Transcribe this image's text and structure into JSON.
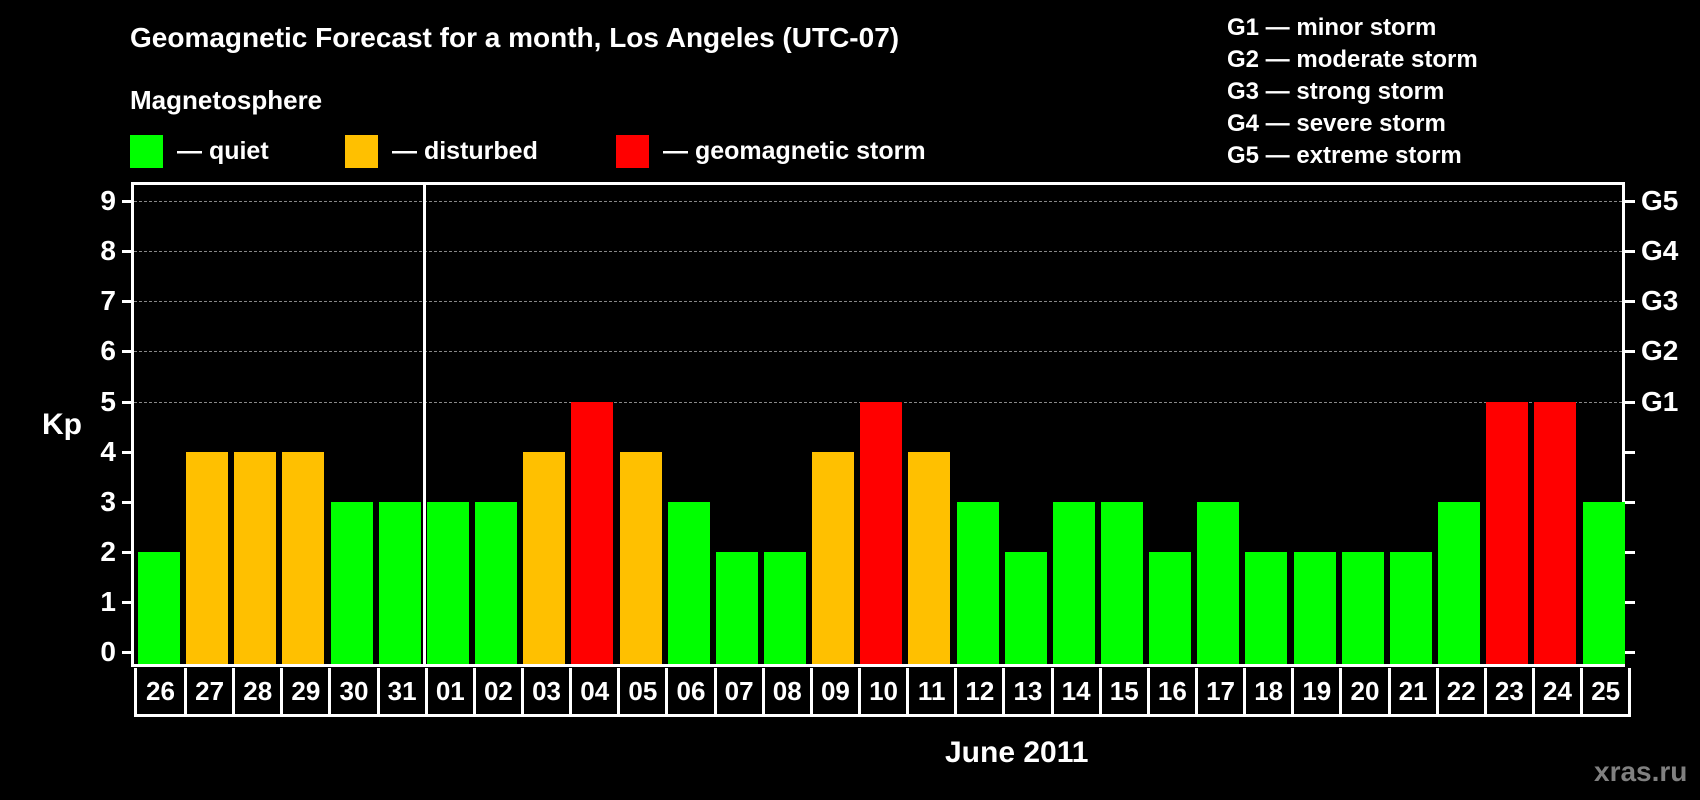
{
  "header": {
    "title": "Geomagnetic Forecast for a month, Los Angeles (UTC-07)",
    "subtitle": "Magnetosphere"
  },
  "legend": {
    "items": [
      {
        "label": "— quiet",
        "color": "#00ff00"
      },
      {
        "label": "— disturbed",
        "color": "#ffc000"
      },
      {
        "label": "— geomagnetic storm",
        "color": "#ff0000"
      }
    ]
  },
  "g_scale_legend": [
    "G1 — minor storm",
    "G2 — moderate storm",
    "G3 — strong storm",
    "G4 — severe storm",
    "G5 — extreme storm"
  ],
  "axes": {
    "ylabel": "Kp",
    "xlabel": "June 2011",
    "yticks": [
      "0",
      "1",
      "2",
      "3",
      "4",
      "5",
      "6",
      "7",
      "8",
      "9"
    ],
    "right_ticks": [
      {
        "kp": 5,
        "label": "G1"
      },
      {
        "kp": 6,
        "label": "G2"
      },
      {
        "kp": 7,
        "label": "G3"
      },
      {
        "kp": 8,
        "label": "G4"
      },
      {
        "kp": 9,
        "label": "G5"
      }
    ]
  },
  "watermark": "xras.ru",
  "colors": {
    "quiet": "#00ff00",
    "disturbed": "#ffc000",
    "storm": "#ff0000"
  },
  "chart_data": {
    "type": "bar",
    "title": "Geomagnetic Forecast for a month, Los Angeles (UTC-07)",
    "xlabel": "June 2011",
    "ylabel": "Kp",
    "ylim": [
      0,
      9
    ],
    "grid": "dashed horizontal lines at Kp 5-9",
    "legend_position": "top",
    "categories": [
      "26",
      "27",
      "28",
      "29",
      "30",
      "31",
      "01",
      "02",
      "03",
      "04",
      "05",
      "06",
      "07",
      "08",
      "09",
      "10",
      "11",
      "12",
      "13",
      "14",
      "15",
      "16",
      "17",
      "18",
      "19",
      "20",
      "21",
      "22",
      "23",
      "24",
      "25"
    ],
    "values": [
      2,
      4,
      4,
      4,
      3,
      3,
      3,
      3,
      4,
      5,
      4,
      3,
      2,
      2,
      4,
      5,
      4,
      3,
      2,
      3,
      3,
      2,
      3,
      2,
      2,
      2,
      2,
      3,
      5,
      5,
      3
    ],
    "status": [
      "quiet",
      "disturbed",
      "disturbed",
      "disturbed",
      "quiet",
      "quiet",
      "quiet",
      "quiet",
      "disturbed",
      "storm",
      "disturbed",
      "quiet",
      "quiet",
      "quiet",
      "disturbed",
      "storm",
      "disturbed",
      "quiet",
      "quiet",
      "quiet",
      "quiet",
      "quiet",
      "quiet",
      "quiet",
      "quiet",
      "quiet",
      "quiet",
      "quiet",
      "storm",
      "storm",
      "quiet"
    ],
    "month_divider_after": "31",
    "right_axis_labels": {
      "5": "G1",
      "6": "G2",
      "7": "G3",
      "8": "G4",
      "9": "G5"
    }
  }
}
